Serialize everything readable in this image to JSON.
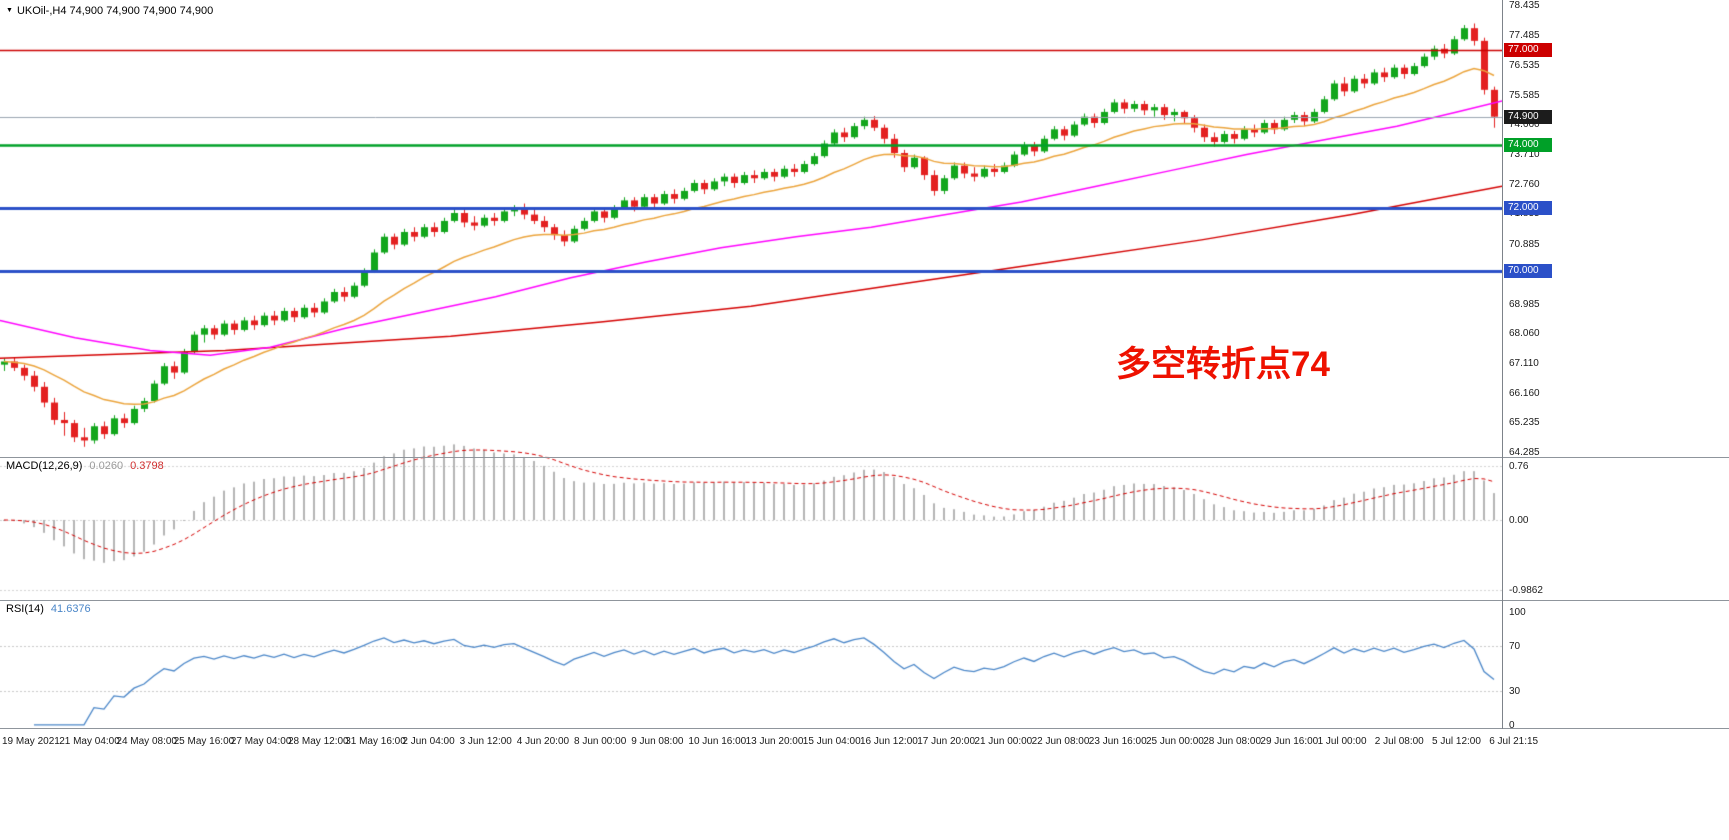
{
  "chart_data": {
    "type": "candlestick",
    "symbol": "UKOil-",
    "timeframe": "H4",
    "title_line": "UKOil-,H4 74,900 74,900 74,900 74,900",
    "annotation": {
      "text": "多空转折点74",
      "color": "#ee1100"
    },
    "colors": {
      "background": "#ffffff",
      "bull": "#12a61c",
      "bear": "#e32020",
      "ma_fast": "#eba43c",
      "ma_mid": "#ff00ff",
      "ma_slow": "#d40000",
      "level_red": "#cc0000",
      "level_green": "#00a028",
      "level_blue": "#2b50c8",
      "current_price_line": "#9aa4b0",
      "macd_hist": "#b4b4b4",
      "macd_signal": "#d40000",
      "rsi_line": "#4a86c8"
    },
    "price_axis": {
      "ylim": [
        64.127,
        78.593
      ],
      "labels": [
        "78.435",
        "77.485",
        "76.535",
        "75.585",
        "74.660",
        "73.710",
        "72.760",
        "71.835",
        "70.885",
        "68.985",
        "68.060",
        "67.110",
        "66.160",
        "65.235",
        "64.285"
      ],
      "boxes": [
        {
          "text": "77.000",
          "price": 77.0,
          "color": "#cc0000"
        },
        {
          "text": "74.900",
          "price": 74.9,
          "color": "#1c1c1c"
        },
        {
          "text": "74.000",
          "price": 74.0,
          "color": "#00a028"
        },
        {
          "text": "72.000",
          "price": 72.0,
          "color": "#2b50c8"
        },
        {
          "text": "70.000",
          "price": 70.0,
          "color": "#2b50c8"
        }
      ]
    },
    "hlines": [
      {
        "price": 77.0,
        "color": "#cc0000",
        "width": 1.5,
        "style": "solid"
      },
      {
        "price": 74.0,
        "color": "#00a028",
        "width": 2.5,
        "style": "solid"
      },
      {
        "price": 72.0,
        "color": "#2b50c8",
        "width": 3,
        "style": "solid"
      },
      {
        "price": 70.0,
        "color": "#2b50c8",
        "width": 3,
        "style": "solid"
      },
      {
        "price": 74.9,
        "color": "#9aa4b0",
        "width": 1,
        "style": "solid"
      }
    ],
    "ma_fast_period": 18,
    "ma_mid_points": [
      [
        0,
        68.45
      ],
      [
        0.05,
        67.9
      ],
      [
        0.1,
        67.5
      ],
      [
        0.14,
        67.35
      ],
      [
        0.18,
        67.6
      ],
      [
        0.23,
        68.2
      ],
      [
        0.28,
        68.7
      ],
      [
        0.33,
        69.2
      ],
      [
        0.38,
        69.8
      ],
      [
        0.43,
        70.3
      ],
      [
        0.48,
        70.75
      ],
      [
        0.53,
        71.1
      ],
      [
        0.58,
        71.4
      ],
      [
        0.63,
        71.8
      ],
      [
        0.68,
        72.2
      ],
      [
        0.73,
        72.7
      ],
      [
        0.78,
        73.2
      ],
      [
        0.83,
        73.7
      ],
      [
        0.88,
        74.15
      ],
      [
        0.93,
        74.6
      ],
      [
        0.97,
        75.05
      ],
      [
        1,
        75.4
      ]
    ],
    "ma_slow_points": [
      [
        0,
        67.25
      ],
      [
        0.15,
        67.5
      ],
      [
        0.3,
        67.95
      ],
      [
        0.4,
        68.4
      ],
      [
        0.5,
        68.9
      ],
      [
        0.6,
        69.6
      ],
      [
        0.7,
        70.3
      ],
      [
        0.8,
        71.0
      ],
      [
        0.9,
        71.8
      ],
      [
        1,
        72.7
      ]
    ],
    "candles": [
      [
        67.05,
        67.25,
        66.85,
        67.15
      ],
      [
        67.15,
        67.28,
        66.85,
        66.95
      ],
      [
        66.95,
        67.05,
        66.55,
        66.7
      ],
      [
        66.7,
        66.85,
        66.2,
        66.35
      ],
      [
        66.35,
        66.5,
        65.7,
        65.85
      ],
      [
        65.85,
        66.0,
        65.15,
        65.3
      ],
      [
        65.3,
        65.55,
        64.8,
        65.2
      ],
      [
        65.2,
        65.3,
        64.6,
        64.75
      ],
      [
        64.75,
        65.05,
        64.45,
        64.65
      ],
      [
        64.65,
        65.2,
        64.55,
        65.1
      ],
      [
        65.1,
        65.25,
        64.7,
        64.85
      ],
      [
        64.85,
        65.45,
        64.8,
        65.35
      ],
      [
        65.35,
        65.5,
        65.05,
        65.2
      ],
      [
        65.2,
        65.75,
        65.15,
        65.65
      ],
      [
        65.65,
        66.0,
        65.55,
        65.9
      ],
      [
        65.9,
        66.55,
        65.85,
        66.45
      ],
      [
        66.45,
        67.1,
        66.4,
        67.0
      ],
      [
        67.0,
        67.15,
        66.6,
        66.8
      ],
      [
        66.8,
        67.55,
        66.75,
        67.45
      ],
      [
        67.45,
        68.1,
        67.4,
        68.0
      ],
      [
        68.0,
        68.3,
        67.75,
        68.2
      ],
      [
        68.2,
        68.3,
        67.85,
        68.0
      ],
      [
        68.0,
        68.45,
        67.95,
        68.35
      ],
      [
        68.35,
        68.45,
        68.0,
        68.15
      ],
      [
        68.15,
        68.55,
        68.1,
        68.45
      ],
      [
        68.45,
        68.6,
        68.15,
        68.3
      ],
      [
        68.3,
        68.7,
        68.25,
        68.6
      ],
      [
        68.6,
        68.75,
        68.3,
        68.45
      ],
      [
        68.45,
        68.85,
        68.4,
        68.75
      ],
      [
        68.75,
        68.85,
        68.4,
        68.55
      ],
      [
        68.55,
        68.95,
        68.5,
        68.85
      ],
      [
        68.85,
        69.0,
        68.55,
        68.7
      ],
      [
        68.7,
        69.15,
        68.65,
        69.05
      ],
      [
        69.05,
        69.45,
        69.0,
        69.35
      ],
      [
        69.35,
        69.5,
        69.05,
        69.2
      ],
      [
        69.2,
        69.65,
        69.15,
        69.55
      ],
      [
        69.55,
        70.1,
        69.5,
        70.0
      ],
      [
        70.0,
        70.7,
        69.95,
        70.6
      ],
      [
        70.6,
        71.2,
        70.55,
        71.1
      ],
      [
        71.1,
        71.2,
        70.7,
        70.85
      ],
      [
        70.85,
        71.35,
        70.8,
        71.25
      ],
      [
        71.25,
        71.4,
        70.95,
        71.1
      ],
      [
        71.1,
        71.5,
        71.05,
        71.4
      ],
      [
        71.4,
        71.55,
        71.1,
        71.25
      ],
      [
        71.25,
        71.7,
        71.2,
        71.6
      ],
      [
        71.6,
        71.95,
        71.55,
        71.85
      ],
      [
        71.85,
        71.95,
        71.4,
        71.55
      ],
      [
        71.55,
        71.75,
        71.3,
        71.45
      ],
      [
        71.45,
        71.8,
        71.4,
        71.7
      ],
      [
        71.7,
        71.85,
        71.45,
        71.6
      ],
      [
        71.6,
        72.0,
        71.55,
        71.9
      ],
      [
        71.9,
        72.1,
        71.75,
        72.0
      ],
      [
        72.0,
        72.15,
        71.65,
        71.8
      ],
      [
        71.8,
        71.95,
        71.5,
        71.6
      ],
      [
        71.6,
        71.75,
        71.25,
        71.4
      ],
      [
        71.4,
        71.5,
        71.0,
        71.15
      ],
      [
        71.15,
        71.3,
        70.8,
        70.95
      ],
      [
        70.95,
        71.45,
        70.9,
        71.35
      ],
      [
        71.35,
        71.7,
        71.3,
        71.6
      ],
      [
        71.6,
        72.0,
        71.55,
        71.9
      ],
      [
        71.9,
        72.0,
        71.55,
        71.7
      ],
      [
        71.7,
        72.1,
        71.65,
        72.0
      ],
      [
        72.0,
        72.35,
        71.95,
        72.25
      ],
      [
        72.25,
        72.35,
        71.9,
        72.05
      ],
      [
        72.05,
        72.45,
        72.0,
        72.35
      ],
      [
        72.35,
        72.45,
        72.0,
        72.15
      ],
      [
        72.15,
        72.55,
        72.1,
        72.45
      ],
      [
        72.45,
        72.6,
        72.15,
        72.3
      ],
      [
        72.3,
        72.65,
        72.25,
        72.55
      ],
      [
        72.55,
        72.9,
        72.5,
        72.8
      ],
      [
        72.8,
        72.9,
        72.45,
        72.6
      ],
      [
        72.6,
        72.95,
        72.55,
        72.85
      ],
      [
        72.85,
        73.1,
        72.7,
        73.0
      ],
      [
        73.0,
        73.1,
        72.65,
        72.8
      ],
      [
        72.8,
        73.15,
        72.75,
        73.05
      ],
      [
        73.05,
        73.2,
        72.8,
        72.95
      ],
      [
        72.95,
        73.25,
        72.9,
        73.15
      ],
      [
        73.15,
        73.25,
        72.85,
        73.0
      ],
      [
        73.0,
        73.35,
        72.95,
        73.25
      ],
      [
        73.25,
        73.4,
        73.0,
        73.15
      ],
      [
        73.15,
        73.5,
        73.1,
        73.4
      ],
      [
        73.4,
        73.75,
        73.35,
        73.65
      ],
      [
        73.65,
        74.15,
        73.6,
        74.05
      ],
      [
        74.05,
        74.5,
        74.0,
        74.4
      ],
      [
        74.4,
        74.55,
        74.1,
        74.25
      ],
      [
        74.25,
        74.7,
        74.2,
        74.6
      ],
      [
        74.6,
        74.9,
        74.5,
        74.8
      ],
      [
        74.8,
        74.92,
        74.45,
        74.55
      ],
      [
        74.55,
        74.65,
        74.05,
        74.2
      ],
      [
        74.2,
        74.35,
        73.6,
        73.75
      ],
      [
        73.75,
        73.85,
        73.15,
        73.3
      ],
      [
        73.3,
        73.7,
        73.25,
        73.6
      ],
      [
        73.6,
        73.65,
        72.9,
        73.05
      ],
      [
        73.05,
        73.2,
        72.4,
        72.55
      ],
      [
        72.55,
        73.05,
        72.45,
        72.95
      ],
      [
        72.95,
        73.45,
        72.9,
        73.35
      ],
      [
        73.35,
        73.45,
        72.95,
        73.1
      ],
      [
        73.1,
        73.3,
        72.85,
        73.0
      ],
      [
        73.0,
        73.35,
        72.95,
        73.25
      ],
      [
        73.25,
        73.4,
        73.0,
        73.15
      ],
      [
        73.15,
        73.45,
        73.1,
        73.35
      ],
      [
        73.35,
        73.8,
        73.3,
        73.7
      ],
      [
        73.7,
        74.1,
        73.65,
        74.0
      ],
      [
        74.0,
        74.1,
        73.65,
        73.8
      ],
      [
        73.8,
        74.3,
        73.75,
        74.2
      ],
      [
        74.2,
        74.6,
        74.15,
        74.5
      ],
      [
        74.5,
        74.6,
        74.15,
        74.3
      ],
      [
        74.3,
        74.75,
        74.25,
        74.65
      ],
      [
        74.65,
        75.0,
        74.6,
        74.9
      ],
      [
        74.9,
        75.0,
        74.55,
        74.7
      ],
      [
        74.7,
        75.15,
        74.65,
        75.05
      ],
      [
        75.05,
        75.45,
        75.0,
        75.35
      ],
      [
        75.35,
        75.45,
        75.0,
        75.15
      ],
      [
        75.15,
        75.4,
        75.05,
        75.3
      ],
      [
        75.3,
        75.4,
        74.95,
        75.1
      ],
      [
        75.1,
        75.3,
        74.9,
        75.2
      ],
      [
        75.2,
        75.3,
        74.8,
        74.95
      ],
      [
        74.95,
        75.15,
        74.75,
        75.05
      ],
      [
        75.05,
        75.1,
        74.7,
        74.85
      ],
      [
        74.85,
        74.95,
        74.4,
        74.55
      ],
      [
        74.55,
        74.65,
        74.1,
        74.25
      ],
      [
        74.25,
        74.4,
        73.95,
        74.1
      ],
      [
        74.1,
        74.45,
        74.05,
        74.35
      ],
      [
        74.35,
        74.45,
        74.05,
        74.2
      ],
      [
        74.2,
        74.6,
        74.15,
        74.5
      ],
      [
        74.5,
        74.65,
        74.25,
        74.4
      ],
      [
        74.4,
        74.8,
        74.35,
        74.7
      ],
      [
        74.7,
        74.8,
        74.35,
        74.5
      ],
      [
        74.5,
        74.9,
        74.45,
        74.8
      ],
      [
        74.8,
        75.05,
        74.7,
        74.95
      ],
      [
        74.95,
        75.05,
        74.6,
        74.75
      ],
      [
        74.75,
        75.15,
        74.7,
        75.05
      ],
      [
        75.05,
        75.55,
        75.0,
        75.45
      ],
      [
        75.45,
        76.05,
        75.4,
        75.95
      ],
      [
        75.95,
        76.15,
        75.55,
        75.7
      ],
      [
        75.7,
        76.2,
        75.65,
        76.1
      ],
      [
        76.1,
        76.25,
        75.8,
        75.95
      ],
      [
        75.95,
        76.4,
        75.9,
        76.3
      ],
      [
        76.3,
        76.45,
        76.0,
        76.15
      ],
      [
        76.15,
        76.55,
        76.1,
        76.45
      ],
      [
        76.45,
        76.55,
        76.1,
        76.25
      ],
      [
        76.25,
        76.6,
        76.2,
        76.5
      ],
      [
        76.5,
        76.9,
        76.45,
        76.8
      ],
      [
        76.8,
        77.15,
        76.7,
        77.05
      ],
      [
        77.05,
        77.2,
        76.75,
        76.9
      ],
      [
        76.9,
        77.45,
        76.85,
        77.35
      ],
      [
        77.35,
        77.8,
        77.3,
        77.7
      ],
      [
        77.7,
        77.85,
        77.15,
        77.3
      ],
      [
        77.3,
        77.4,
        75.6,
        75.75
      ],
      [
        75.75,
        75.85,
        74.55,
        74.9
      ]
    ],
    "macd": {
      "label": "MACD(12,26,9)",
      "value_main": "0.0260",
      "value_signal": "0.3798",
      "params": [
        12,
        26,
        9
      ],
      "ylim": [
        -1.127,
        0.873
      ],
      "axis_labels": [
        {
          "text": "0.76",
          "value": 0.76
        },
        {
          "text": "0.00",
          "value": 0.0
        },
        {
          "text": "-0.9862",
          "value": -0.9862
        }
      ]
    },
    "rsi": {
      "label": "RSI(14)",
      "value": "41.6376",
      "period": 14,
      "ylim": [
        -2.7,
        109.7
      ],
      "levels": [
        30,
        70
      ],
      "axis_labels": [
        {
          "text": "100",
          "value": 100
        },
        {
          "text": "70",
          "value": 70
        },
        {
          "text": "30",
          "value": 30
        },
        {
          "text": "0",
          "value": 0
        }
      ]
    },
    "x_axis": {
      "labels": [
        "19 May 2021",
        "21 May 04:00",
        "24 May 08:00",
        "25 May 16:00",
        "27 May 04:00",
        "28 May 12:00",
        "31 May 16:00",
        "2 Jun 04:00",
        "3 Jun 12:00",
        "4 Jun 20:00",
        "8 Jun 00:00",
        "9 Jun 08:00",
        "10 Jun 16:00",
        "13 Jun 20:00",
        "15 Jun 04:00",
        "16 Jun 12:00",
        "17 Jun 20:00",
        "21 Jun 00:00",
        "22 Jun 08:00",
        "23 Jun 16:00",
        "25 Jun 00:00",
        "28 Jun 08:00",
        "29 Jun 16:00",
        "1 Jul 00:00",
        "2 Jul 08:00",
        "5 Jul 12:00",
        "6 Jul 21:15"
      ]
    }
  }
}
